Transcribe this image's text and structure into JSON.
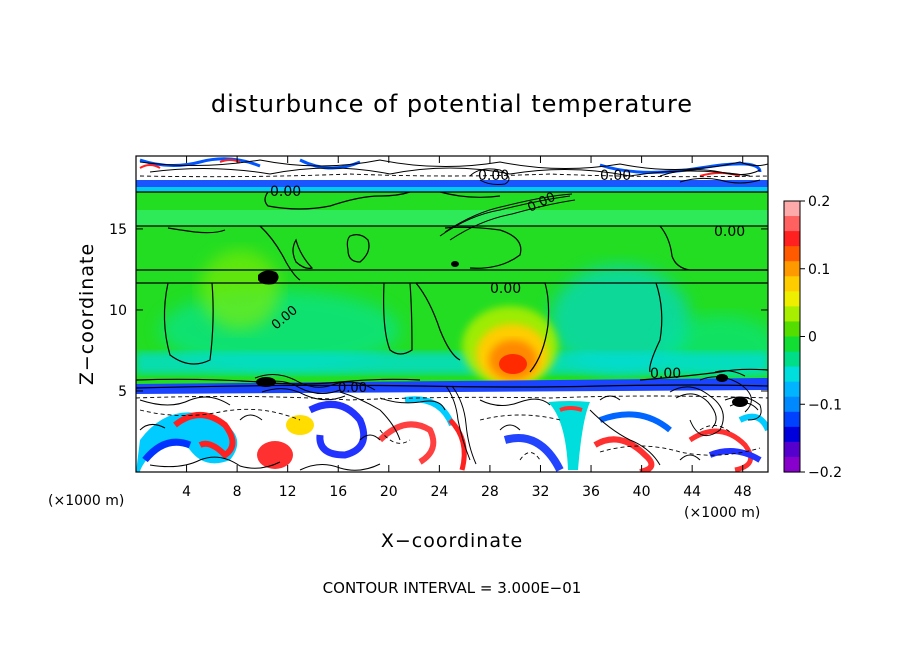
{
  "chart_data": {
    "type": "heatmap",
    "title": "disturbunce of potential temperature",
    "xlabel": "X−coordinate",
    "ylabel": "Z−coordinate",
    "x_unit_left": "(×1000 m)",
    "x_unit_right": "(×1000 m)",
    "footer": "CONTOUR INTERVAL = 3.000E−01",
    "xlim": [
      0,
      50
    ],
    "ylim": [
      0,
      19.5
    ],
    "xticks": [
      4,
      8,
      12,
      16,
      20,
      24,
      28,
      32,
      36,
      40,
      44,
      48
    ],
    "xtick_labels": [
      "4",
      "8",
      "12",
      "16",
      "20",
      "24",
      "28",
      "32",
      "36",
      "40",
      "44",
      "48"
    ],
    "yticks": [
      5,
      10,
      15
    ],
    "ytick_labels": [
      "5",
      "10",
      "15"
    ],
    "colorbar": {
      "range": [
        -0.2,
        0.2
      ],
      "ticks": [
        0.2,
        0.1,
        0,
        -0.1,
        -0.2
      ],
      "tick_labels": [
        "0.2",
        "0.1",
        "0",
        "−0.1",
        "−0.2"
      ],
      "colors": [
        "#ffaaaa",
        "#ff6060",
        "#ff2020",
        "#ff5a00",
        "#ff9900",
        "#ffcc00",
        "#eeee00",
        "#a8ee00",
        "#55dd00",
        "#11dd33",
        "#00dd88",
        "#00dddd",
        "#00b4ff",
        "#0088ff",
        "#0040ff",
        "#0000dd",
        "#5500cc",
        "#8800cc"
      ]
    },
    "contour_labels": [
      "0.00",
      "0.00",
      "0.00",
      "0.00",
      "0.00",
      "0.00",
      "0.00",
      "0.00",
      "0.00"
    ],
    "features": [
      {
        "name": "warm anomaly",
        "x": 29.5,
        "z": 7.0,
        "value": 0.13
      },
      {
        "name": "cool anomaly",
        "x": 36,
        "z": 9,
        "value": -0.05
      },
      {
        "name": "cold layer",
        "x": 25,
        "z": 6,
        "value": -0.15
      },
      {
        "name": "cold layer top",
        "x": 25,
        "z": 18.2,
        "value": -0.15
      }
    ]
  }
}
